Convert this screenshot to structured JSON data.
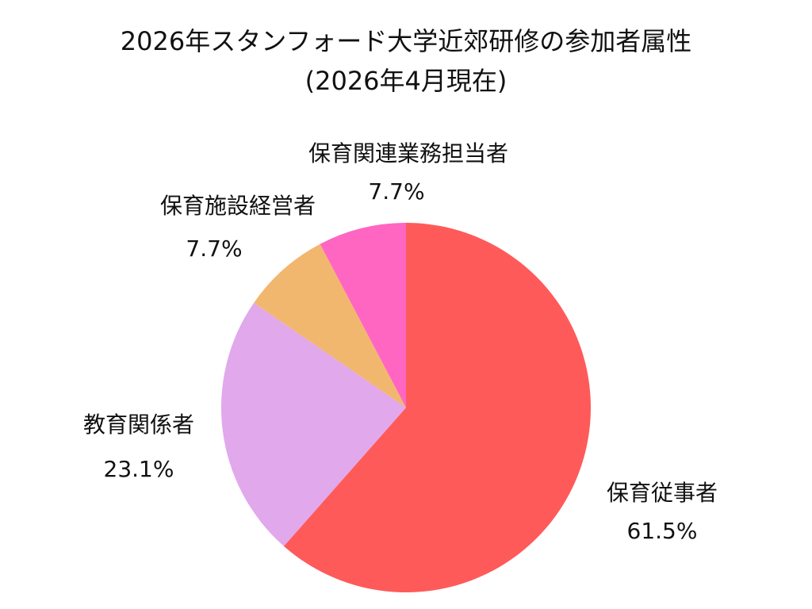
{
  "title": {
    "line1": "2026年スタンフォード大学近郊研修の参加者属性",
    "line2": "(2026年4月現在)"
  },
  "chart_data": {
    "type": "pie",
    "title": "2026年スタンフォード大学近郊研修の参加者属性 (2026年4月現在)",
    "start_angle": "12 o'clock, clockwise",
    "categories": [
      "保育従事者",
      "教育関係者",
      "保育施設経営者",
      "保育関連業務担当者"
    ],
    "values": [
      61.5,
      23.1,
      7.7,
      7.7
    ],
    "value_labels": [
      "61.5%",
      "23.1%",
      "7.7%",
      "7.7%"
    ],
    "colors": [
      "#FF5A5A",
      "#E1A8EC",
      "#F2B76E",
      "#FF66C1"
    ],
    "legend": "none (labels placed outside slices)"
  }
}
